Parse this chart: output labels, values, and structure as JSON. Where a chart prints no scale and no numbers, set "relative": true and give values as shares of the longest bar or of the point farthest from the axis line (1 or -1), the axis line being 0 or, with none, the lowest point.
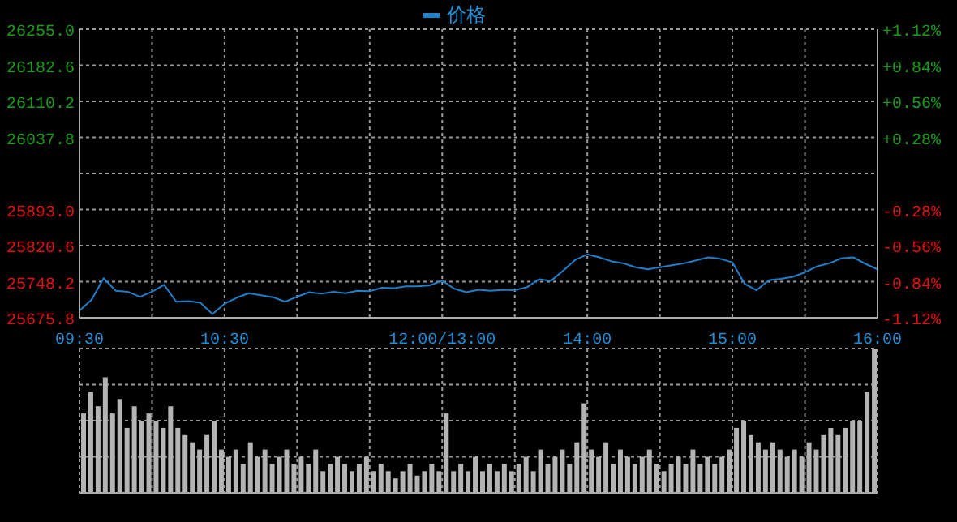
{
  "chart_data": [
    {
      "type": "line",
      "legend": "top",
      "grid": true,
      "categories": [
        "09:30",
        null,
        null,
        null,
        null,
        null,
        null,
        null,
        null,
        null,
        null,
        null,
        "10:30",
        null,
        null,
        null,
        null,
        null,
        null,
        null,
        null,
        null,
        null,
        null,
        null,
        null,
        null,
        null,
        null,
        null,
        "12:00/13:00",
        null,
        null,
        null,
        null,
        null,
        null,
        null,
        null,
        null,
        null,
        null,
        "14:00",
        null,
        null,
        null,
        null,
        null,
        null,
        null,
        null,
        null,
        null,
        null,
        "15:00",
        null,
        null,
        null,
        null,
        null,
        null,
        null,
        null,
        null,
        null,
        null,
        "16:00"
      ],
      "series": [
        {
          "name": "价格",
          "color": "#1f7fc8",
          "values": [
            25690,
            25712,
            25755,
            25730,
            25728,
            25718,
            25728,
            25742,
            25708,
            25709,
            25706,
            25683,
            25704,
            25716,
            25725,
            25721,
            25717,
            25708,
            25718,
            25727,
            25724,
            25728,
            25725,
            25730,
            25729,
            25736,
            25735,
            25739,
            25739,
            25741,
            25750,
            25734,
            25727,
            25732,
            25730,
            25732,
            25731,
            25737,
            25753,
            25750,
            25770,
            25792,
            25803,
            25797,
            25789,
            25785,
            25777,
            25773,
            25777,
            25781,
            25785,
            25791,
            25797,
            25794,
            25787,
            25744,
            25731,
            25751,
            25754,
            25758,
            25767,
            25779,
            25785,
            25795,
            25797,
            25784,
            25773
          ]
        }
      ],
      "ylim": [
        25675.8,
        26255
      ],
      "yticks": [
        {
          "value": 25675.8,
          "label": "25675.8"
        },
        25748.2,
        25820.6,
        {
          "value": 25893,
          "label": "25893.0"
        },
        {
          "value": 25965.4,
          "label": null
        },
        26037.8,
        26110.2,
        26182.6,
        {
          "value": 26255,
          "label": "26255.0"
        }
      ],
      "y2lim": [
        -1.12,
        1.12
      ],
      "y2ticks": [
        {
          "value": -1.12,
          "label": "-1.12%"
        },
        {
          "value": -0.84,
          "label": "-0.84%"
        },
        {
          "value": -0.56,
          "label": "-0.56%"
        },
        {
          "value": -0.28,
          "label": "-0.28%"
        },
        {
          "value": 0,
          "label": null
        },
        {
          "value": 0.28,
          "label": "+0.28%"
        },
        {
          "value": 0.56,
          "label": "+0.56%"
        },
        {
          "value": 0.84,
          "label": "+0.84%"
        },
        {
          "value": 1.12,
          "label": "+1.12%"
        }
      ]
    },
    {
      "type": "bar",
      "relative": true,
      "grid": true,
      "color": "#b4b4b4",
      "categories": [
        null,
        null,
        null,
        null,
        null,
        null,
        null,
        null,
        null,
        null,
        null,
        null,
        null,
        null,
        null,
        null,
        null,
        null,
        null,
        null,
        null,
        null,
        null,
        null,
        null,
        null,
        null,
        null,
        null,
        null,
        null,
        null,
        null,
        null,
        null,
        null,
        null,
        null,
        null,
        null,
        null,
        null,
        null,
        null,
        null,
        null,
        null,
        null,
        null,
        null,
        null,
        null,
        null,
        null,
        null,
        null,
        null,
        null,
        null,
        null,
        null,
        null,
        null,
        null,
        null,
        null,
        null,
        null,
        null,
        null,
        null,
        null,
        null,
        null,
        null,
        null,
        null,
        null,
        null,
        null,
        null,
        null,
        null,
        null,
        null,
        null,
        null,
        null,
        null,
        null,
        null,
        null,
        null,
        null,
        null,
        null,
        null,
        null,
        null,
        null,
        null,
        null,
        null,
        null,
        null,
        null,
        null,
        null,
        null,
        null
      ],
      "values": [
        0.55,
        0.7,
        0.6,
        0.8,
        0.55,
        0.65,
        0.45,
        0.6,
        0.5,
        0.55,
        0.5,
        0.45,
        0.6,
        0.45,
        0.4,
        0.35,
        0.3,
        0.4,
        0.5,
        0.3,
        0.25,
        0.3,
        0.2,
        0.35,
        0.25,
        0.3,
        0.2,
        0.25,
        0.3,
        0.2,
        0.25,
        0.2,
        0.3,
        0.15,
        0.2,
        0.25,
        0.2,
        0.15,
        0.2,
        0.25,
        0.15,
        0.2,
        0.15,
        0.1,
        0.15,
        0.2,
        0.12,
        0.15,
        0.2,
        0.15,
        0.55,
        0.15,
        0.2,
        0.15,
        0.25,
        0.15,
        0.2,
        0.15,
        0.2,
        0.15,
        0.2,
        0.25,
        0.15,
        0.3,
        0.2,
        0.25,
        0.3,
        0.2,
        0.35,
        0.62,
        0.3,
        0.25,
        0.35,
        0.2,
        0.3,
        0.25,
        0.2,
        0.25,
        0.3,
        0.2,
        0.15,
        0.2,
        0.25,
        0.2,
        0.3,
        0.2,
        0.25,
        0.2,
        0.25,
        0.3,
        0.45,
        0.5,
        0.4,
        0.35,
        0.3,
        0.35,
        0.3,
        0.25,
        0.3,
        0.25,
        0.35,
        0.3,
        0.4,
        0.45,
        0.4,
        0.45,
        0.5,
        0.5,
        0.7,
        1
      ]
    }
  ]
}
